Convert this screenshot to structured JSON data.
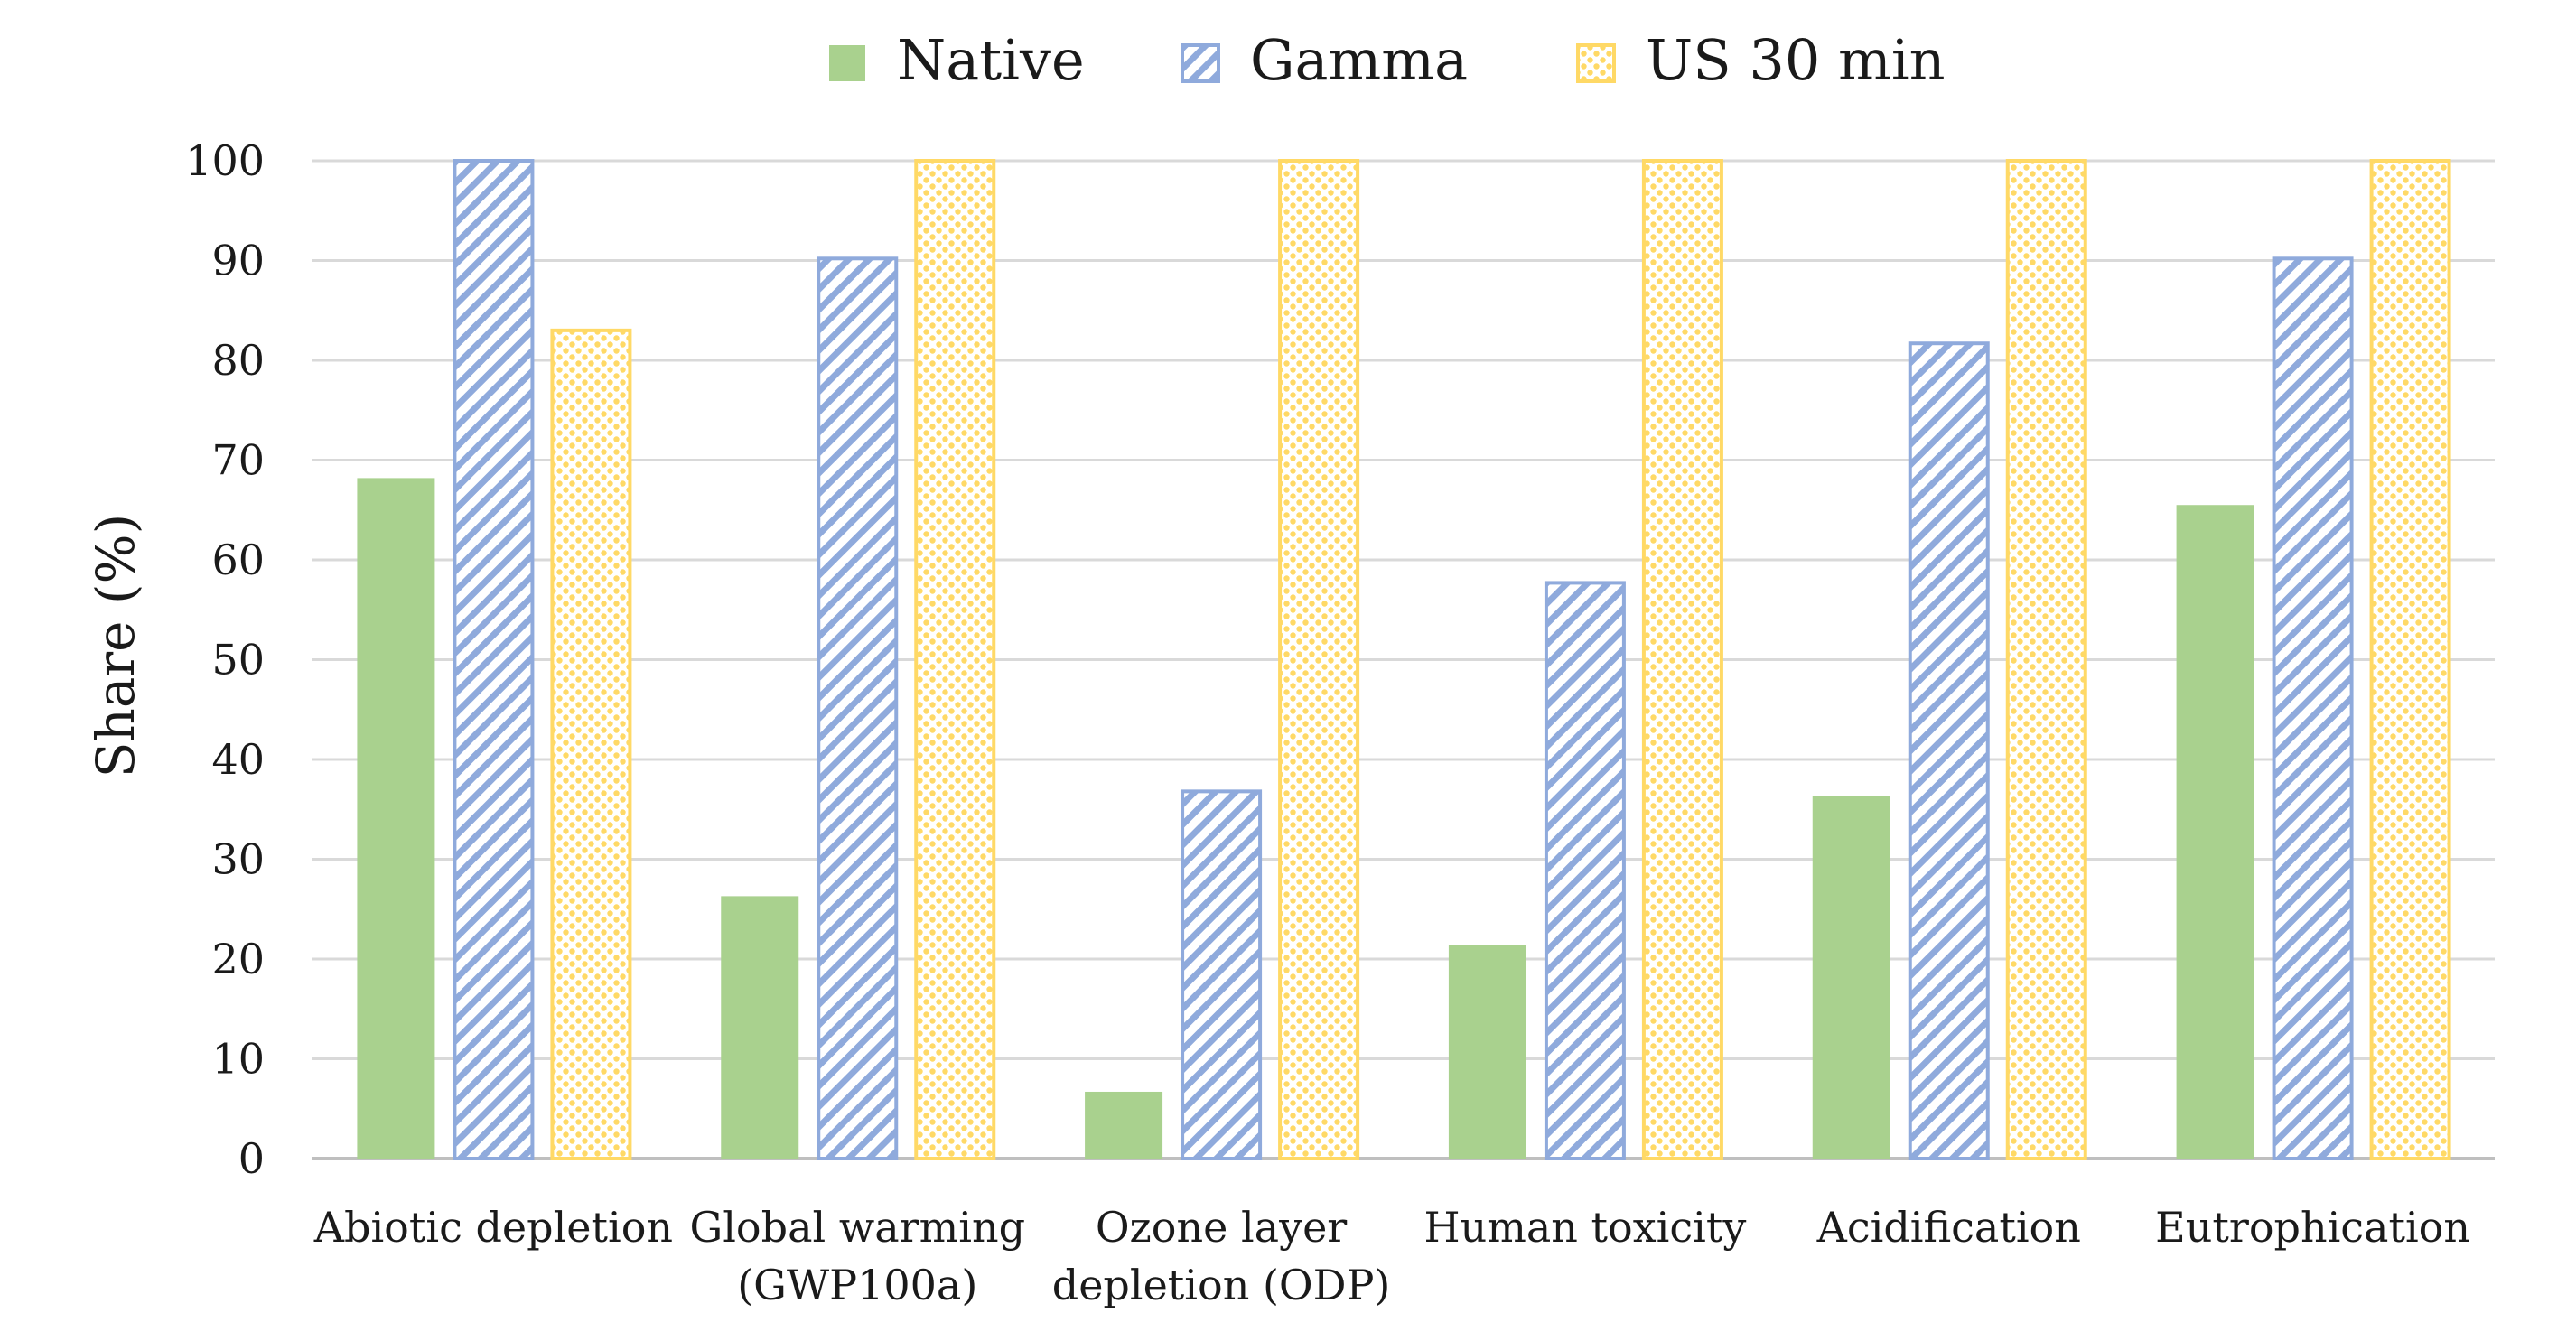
{
  "chart_data": {
    "type": "bar",
    "title": "",
    "xlabel": "",
    "ylabel": "Share (%)",
    "ylim": [
      0,
      100
    ],
    "yticks": [
      0,
      10,
      20,
      30,
      40,
      50,
      60,
      70,
      80,
      90,
      100
    ],
    "grid": true,
    "legend_position": "top-center",
    "categories": [
      [
        "Abiotic depletion"
      ],
      [
        "Global warming",
        "(GWP100a)"
      ],
      [
        "Ozone layer",
        "depletion (ODP)"
      ],
      [
        "Human toxicity"
      ],
      [
        "Acidification"
      ],
      [
        "Eutrophication"
      ]
    ],
    "series": [
      {
        "name": "Native",
        "pattern": "solid",
        "color": "#a9d18e",
        "values": [
          68.2,
          26.3,
          6.7,
          21.4,
          36.3,
          65.5
        ]
      },
      {
        "name": "Gamma",
        "pattern": "diagonal-stripes",
        "color": "#8faadc",
        "values": [
          100,
          90.2,
          36.8,
          57.7,
          81.7,
          90.2
        ]
      },
      {
        "name": "US 30 min",
        "pattern": "dots",
        "color": "#ffd966",
        "values": [
          83.0,
          100,
          100,
          100,
          100,
          100
        ]
      }
    ]
  }
}
